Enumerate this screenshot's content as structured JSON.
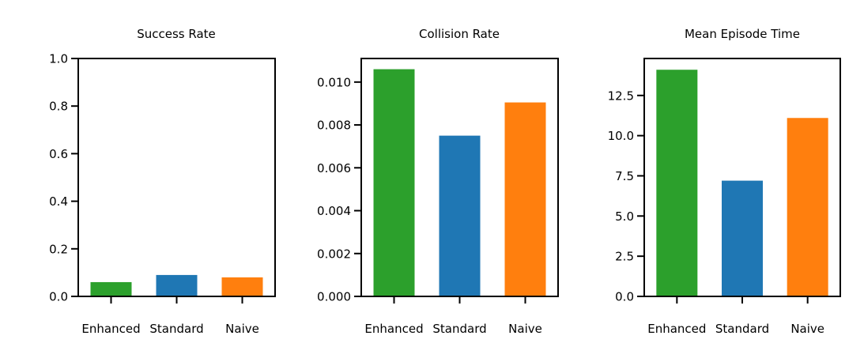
{
  "chart_data": [
    {
      "type": "bar",
      "title": "Success Rate",
      "xlabel": "",
      "ylabel": "",
      "categories": [
        "Enhanced",
        "Standard",
        "Naive"
      ],
      "values": [
        0.06,
        0.09,
        0.08
      ],
      "colors": [
        "#2ca02c",
        "#1f77b4",
        "#ff7f0e"
      ],
      "ylim": [
        0,
        1.0
      ],
      "yticks": [
        0.0,
        0.2,
        0.4,
        0.6,
        0.8,
        1.0
      ],
      "ytick_labels": [
        "0.0",
        "0.2",
        "0.4",
        "0.6",
        "0.8",
        "1.0"
      ],
      "grid": false,
      "legend": "none"
    },
    {
      "type": "bar",
      "title": "Collision Rate",
      "xlabel": "",
      "ylabel": "",
      "categories": [
        "Enhanced",
        "Standard",
        "Naive"
      ],
      "values": [
        0.0106,
        0.0075,
        0.00905
      ],
      "colors": [
        "#2ca02c",
        "#1f77b4",
        "#ff7f0e"
      ],
      "ylim": [
        0,
        0.0111
      ],
      "yticks": [
        0.0,
        0.002,
        0.004,
        0.006,
        0.008,
        0.01
      ],
      "ytick_labels": [
        "0.000",
        "0.002",
        "0.004",
        "0.006",
        "0.008",
        "0.010"
      ],
      "grid": false,
      "legend": "none"
    },
    {
      "type": "bar",
      "title": "Mean Episode Time",
      "xlabel": "",
      "ylabel": "",
      "categories": [
        "Enhanced",
        "Standard",
        "Naive"
      ],
      "values": [
        14.1,
        7.2,
        11.1
      ],
      "colors": [
        "#2ca02c",
        "#1f77b4",
        "#ff7f0e"
      ],
      "ylim": [
        0,
        14.8
      ],
      "yticks": [
        0.0,
        2.5,
        5.0,
        7.5,
        10.0,
        12.5
      ],
      "ytick_labels": [
        "0.0",
        "2.5",
        "5.0",
        "7.5",
        "10.0",
        "12.5"
      ],
      "grid": false,
      "legend": "none"
    }
  ]
}
